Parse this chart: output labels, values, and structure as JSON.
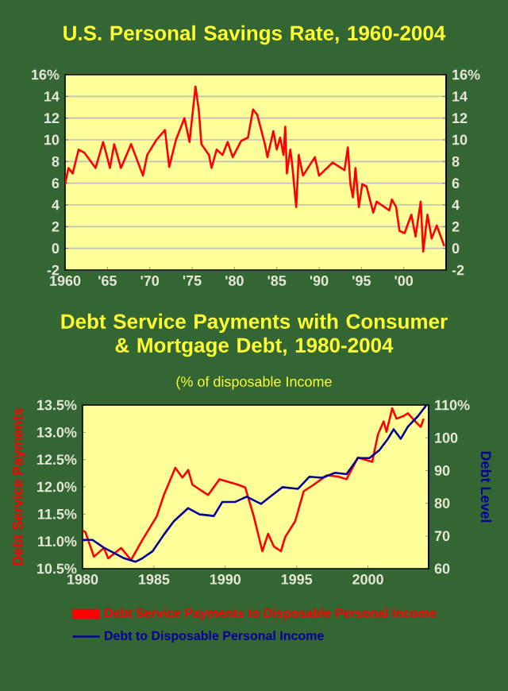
{
  "chart_data": [
    {
      "type": "line",
      "title": "U.S. Personal Savings Rate, 1960-2004",
      "xlim": [
        1960,
        2005
      ],
      "ylim": [
        -2,
        16
      ],
      "y2lim": [
        -2,
        16
      ],
      "xticks": [
        1960,
        {
          "value": 1965,
          "label": "'65"
        },
        {
          "value": 1970,
          "label": "'70"
        },
        {
          "value": 1975,
          "label": "'75"
        },
        {
          "value": 1980,
          "label": "'80"
        },
        {
          "value": 1985,
          "label": "'85"
        },
        {
          "value": 1990,
          "label": "'90"
        },
        {
          "value": 1995,
          "label": "'95"
        },
        {
          "value": 2000,
          "label": "'00"
        }
      ],
      "yticks": [
        -2,
        0,
        2,
        4,
        6,
        8,
        10,
        12,
        14,
        {
          "value": 16,
          "label": "16%"
        }
      ],
      "y2ticks": [
        -2,
        0,
        2,
        4,
        6,
        8,
        10,
        12,
        14,
        {
          "value": 16,
          "label": "16%"
        }
      ],
      "grid": "y",
      "x": [
        1960,
        1960.4,
        1960.9,
        1961.6,
        1962.3,
        1963.6,
        1964.5,
        1965.3,
        1965.8,
        1966.6,
        1967.8,
        1969.2,
        1969.7,
        1970.8,
        1971.8,
        1972.3,
        1973.1,
        1974.1,
        1974.7,
        1975.4,
        1975.8,
        1976.1,
        1977.0,
        1977.3,
        1977.9,
        1978.6,
        1979.2,
        1979.8,
        1980.8,
        1981.6,
        1982.2,
        1982.7,
        1983.6,
        1983.9,
        1984.6,
        1985.0,
        1985.4,
        1985.8,
        1986.0,
        1986.2,
        1986.6,
        1986.8,
        1987.3,
        1987.6,
        1988.1,
        1989.5,
        1990.0,
        1991.6,
        1993.0,
        1993.4,
        1993.7,
        1994.0,
        1994.3,
        1994.7,
        1995.1,
        1995.6,
        1996.4,
        1996.8,
        1998.3,
        1998.6,
        1999.1,
        1999.5,
        2000.1,
        2000.9,
        2001.4,
        2002.0,
        2002.3,
        2002.8,
        2003.3,
        2003.9,
        2004.8
      ],
      "series": [
        {
          "color": "#ff0000",
          "values": [
            5.9,
            7.4,
            6.9,
            9.1,
            8.8,
            7.4,
            9.8,
            7.4,
            9.6,
            7.4,
            9.6,
            6.7,
            8.6,
            10.0,
            10.9,
            7.5,
            10.0,
            12.0,
            9.8,
            14.9,
            12.7,
            9.6,
            8.6,
            7.4,
            9.1,
            8.6,
            9.8,
            8.4,
            9.9,
            10.2,
            12.8,
            12.3,
            9.6,
            8.4,
            10.8,
            9.1,
            10.2,
            8.6,
            11.2,
            6.9,
            9.1,
            7.9,
            3.8,
            8.6,
            6.7,
            8.4,
            6.7,
            7.9,
            7.2,
            9.3,
            5.9,
            4.7,
            7.4,
            3.8,
            5.9,
            5.7,
            3.3,
            4.3,
            3.5,
            4.5,
            3.8,
            1.6,
            1.4,
            3.1,
            1.1,
            4.3,
            -0.3,
            3.1,
            0.9,
            2.1,
            0.2
          ]
        }
      ]
    },
    {
      "type": "line",
      "title": "Debt Service Payments with Consumer & Mortgage Debt, 1980-2004",
      "subtitle": "(% of disposable Income",
      "ylabel": "Debt Service Payments",
      "y2label": "Debt Level",
      "xlim": [
        1980,
        2004.25
      ],
      "xticks": [
        1980,
        1985,
        1990,
        1995,
        2000
      ],
      "ylim": [
        10.5,
        13.5
      ],
      "yticks": [
        {
          "value": 10.5,
          "label": "10.5%"
        },
        {
          "value": 11.0,
          "label": "11.0%"
        },
        {
          "value": 11.5,
          "label": "11.5%"
        },
        {
          "value": 12.0,
          "label": "12.0%"
        },
        {
          "value": 12.5,
          "label": "12.5%"
        },
        {
          "value": 13.0,
          "label": "13.0%"
        },
        {
          "value": 13.5,
          "label": "13.5%"
        }
      ],
      "y2lim": [
        60,
        110
      ],
      "y2ticks": [
        60,
        70,
        80,
        90,
        100,
        {
          "value": 110,
          "label": "110%"
        }
      ],
      "legend": "bottom",
      "series": [
        {
          "name": "Debt Service Payments to Disposable Personal Income",
          "color": "#ff0000",
          "x": [
            1980,
            1980.2,
            1980.8,
            1981.5,
            1981.8,
            1982.7,
            1983.4,
            1984.2,
            1985.2,
            1985.7,
            1986.5,
            1987.0,
            1987.4,
            1987.7,
            1988.8,
            1989.6,
            1990.9,
            1991.4,
            1992.0,
            1992.6,
            1993.0,
            1993.4,
            1993.9,
            1994.2,
            1994.9,
            1995.5,
            1996.2,
            1997.1,
            1997.9,
            1998.5,
            1999.3,
            2000.3,
            2000.7,
            2001.1,
            2001.3,
            2001.7,
            2002.0,
            2002.5,
            2002.8,
            2003.5,
            2003.7,
            2003.9
          ],
          "values": [
            11.2,
            11.17,
            10.72,
            10.88,
            10.69,
            10.88,
            10.66,
            11.03,
            11.46,
            11.85,
            12.35,
            12.17,
            12.31,
            12.04,
            11.85,
            12.14,
            12.04,
            11.99,
            11.46,
            10.82,
            11.14,
            10.91,
            10.82,
            11.08,
            11.37,
            11.92,
            12.04,
            12.21,
            12.19,
            12.14,
            12.54,
            12.46,
            12.96,
            13.2,
            13.01,
            13.44,
            13.25,
            13.3,
            13.35,
            13.15,
            13.1,
            13.25
          ]
        },
        {
          "name": "Debt to Disposable Personal Income",
          "color": "#000099",
          "axis": "y2",
          "x": [
            1980,
            1980.7,
            1981.5,
            1982.2,
            1982.9,
            1983.7,
            1984.2,
            1984.9,
            1985.7,
            1986.4,
            1987.4,
            1988.2,
            1989.2,
            1989.8,
            1990.7,
            1991.5,
            1992.5,
            1993.3,
            1994.0,
            1995.1,
            1995.9,
            1996.8,
            1997.7,
            1998.5,
            1999.3,
            2000.1,
            2000.8,
            2001.4,
            2001.8,
            2002.3,
            2002.8,
            2003.5,
            2004.1
          ],
          "values": [
            68.8,
            68.8,
            66.4,
            64.8,
            63.2,
            62.1,
            63.2,
            65.3,
            70.4,
            74.5,
            78.5,
            76.6,
            76.1,
            80.4,
            80.4,
            82.0,
            79.8,
            82.5,
            84.9,
            84.4,
            88.1,
            87.8,
            89.3,
            88.9,
            93.8,
            93.8,
            96.2,
            99.7,
            102.6,
            99.7,
            103.4,
            106.6,
            110
          ]
        }
      ]
    }
  ]
}
